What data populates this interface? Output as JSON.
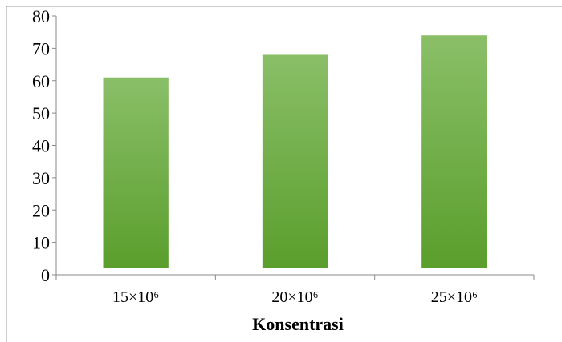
{
  "chart_data": {
    "type": "bar",
    "categories": [
      "15×10⁶",
      "20×10⁶",
      "25×10⁶"
    ],
    "values": [
      61,
      68,
      74
    ],
    "title": "",
    "xlabel": "Konsentrasi",
    "ylabel": "",
    "ylim": [
      0,
      80
    ],
    "yticks": [
      "0",
      "10",
      "20",
      "30",
      "40",
      "50",
      "60",
      "70",
      "80"
    ],
    "grid": false,
    "legend": "none",
    "colors": {
      "bar_top": "#8abf68",
      "bar_bottom": "#5a9e2c",
      "axis": "#888888",
      "border": "#9a9a9a"
    }
  }
}
